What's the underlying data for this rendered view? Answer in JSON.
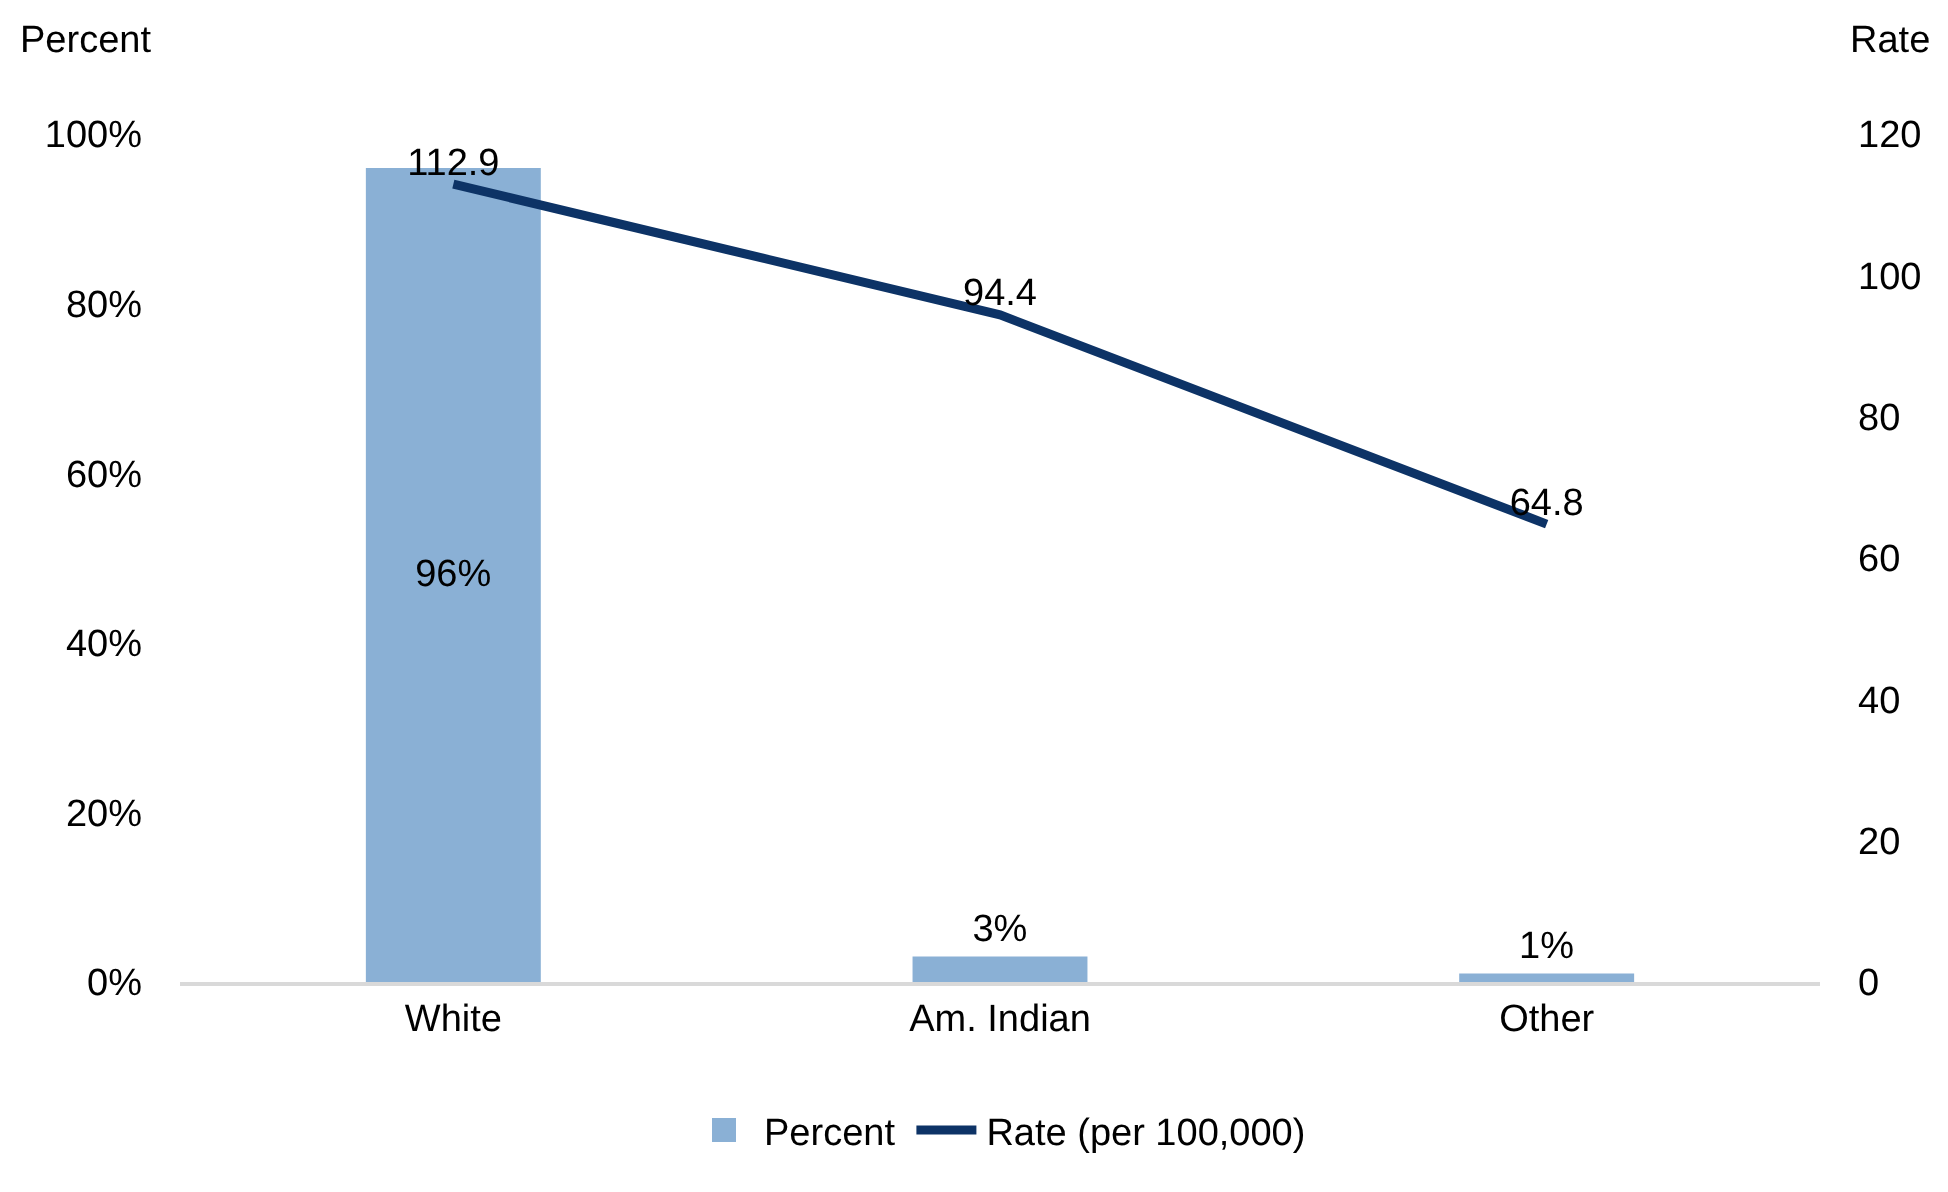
{
  "chart_data": {
    "type": "bar",
    "categories": [
      "White",
      "Am. Indian",
      "Other"
    ],
    "ylabel": "Percent",
    "y2label": "Rate",
    "series": [
      {
        "name": "Percent",
        "color": "#8ab0d5",
        "values": [
          96,
          3,
          1
        ],
        "value_labels": [
          "96%",
          "3%",
          "1%"
        ]
      },
      {
        "name": "Rate (per 100,000)",
        "type": "line",
        "axis": "y2",
        "color": "#0d3366",
        "values": [
          112.9,
          94.4,
          64.8
        ],
        "value_labels": [
          "112.9",
          "94.4",
          "64.8"
        ]
      }
    ],
    "ylim": [
      0,
      100
    ],
    "yticks": [
      {
        "value": 0,
        "label": "0%"
      },
      {
        "value": 20,
        "label": "20%"
      },
      {
        "value": 40,
        "label": "40%"
      },
      {
        "value": 60,
        "label": "60%"
      },
      {
        "value": 80,
        "label": "80%"
      },
      {
        "value": 100,
        "label": "100%"
      }
    ],
    "y2lim": [
      0,
      120
    ],
    "y2ticks": [
      0,
      20,
      40,
      60,
      80,
      100,
      120
    ],
    "grid": false,
    "legend": "bottom",
    "marker": "none",
    "line_style": "solid"
  }
}
